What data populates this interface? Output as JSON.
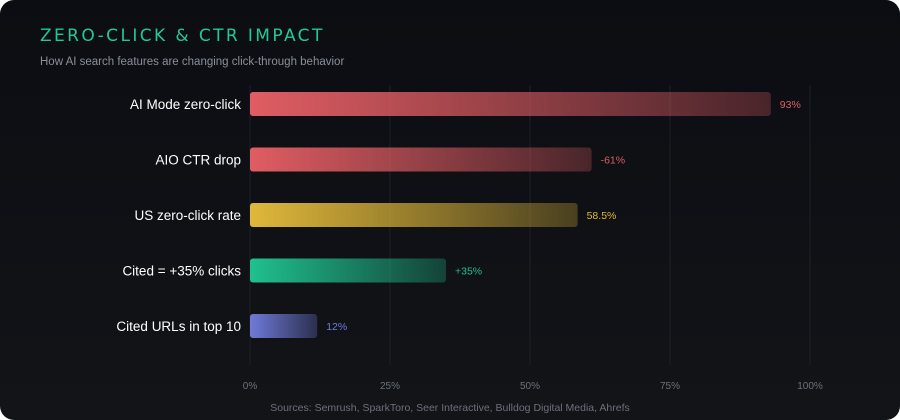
{
  "header": {
    "title": "ZERO-CLICK & CTR IMPACT",
    "subtitle": "How AI search features are changing click-through behavior"
  },
  "footer": {
    "source": "Sources: Semrush, SparkToro, Seer Interactive, Bulldog Digital Media, Ahrefs"
  },
  "chart_data": {
    "type": "bar",
    "orientation": "horizontal",
    "categories": [
      "AI Mode zero-click",
      "AIO CTR drop",
      "US zero-click rate",
      "Cited = +35% clicks",
      "Cited URLs in top 10"
    ],
    "values": [
      93,
      61,
      58.5,
      35,
      12
    ],
    "data_labels": [
      "93%",
      "-61%",
      "58.5%",
      "+35%",
      "12%"
    ],
    "colors": [
      "#e05d63",
      "#e05d63",
      "#e0b83a",
      "#1fc18f",
      "#6f7ad9"
    ],
    "xlim": [
      0,
      100
    ],
    "xticks": [
      0,
      25,
      50,
      75,
      100
    ],
    "xtick_labels": [
      "0%",
      "25%",
      "50%",
      "75%",
      "100%"
    ],
    "grid": true,
    "legend": "none"
  }
}
